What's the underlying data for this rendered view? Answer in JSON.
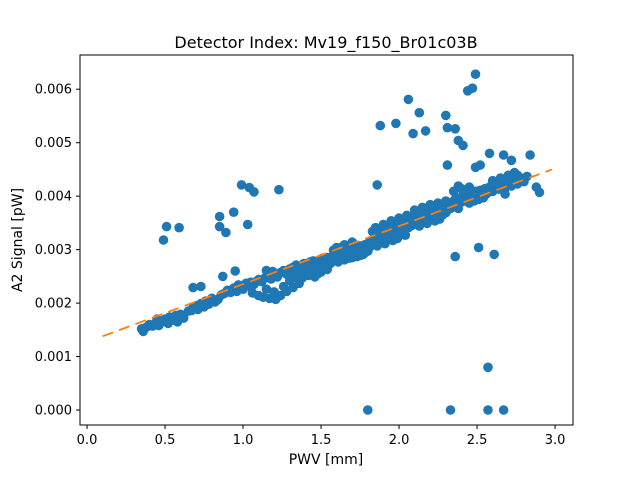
{
  "figure": {
    "title": "Detector Index: Mv19_f150_Br01c03B"
  },
  "chart_data": {
    "type": "scatter",
    "title": "Detector Index: Mv19_f150_Br01c03B",
    "xlabel": "PWV [mm]",
    "ylabel": "A2 Signal [pW]",
    "xlim": [
      -0.045,
      3.115
    ],
    "ylim": [
      -0.00028,
      0.00664
    ],
    "grid": false,
    "legend": "none",
    "x_ticks": [
      0.0,
      0.5,
      1.0,
      1.5,
      2.0,
      2.5,
      3.0
    ],
    "x_tick_labels": [
      "0.0",
      "0.5",
      "1.0",
      "1.5",
      "2.0",
      "2.5",
      "3.0"
    ],
    "y_ticks": [
      0.0,
      0.001,
      0.002,
      0.003,
      0.004,
      0.005,
      0.006
    ],
    "y_tick_labels": [
      "0.000",
      "0.001",
      "0.002",
      "0.003",
      "0.004",
      "0.005",
      "0.006"
    ],
    "marker_color": "#1f77b4",
    "trend_color": "#ff7f0e",
    "trend_line": {
      "style": "dashed",
      "x1": 0.1,
      "y1": 0.00138,
      "x2": 2.98,
      "y2": 0.0045
    },
    "points": [
      [
        0.35,
        0.00152
      ],
      [
        0.36,
        0.00147
      ],
      [
        0.38,
        0.00155
      ],
      [
        0.4,
        0.0016
      ],
      [
        0.42,
        0.00157
      ],
      [
        0.44,
        0.00163
      ],
      [
        0.45,
        0.0017
      ],
      [
        0.46,
        0.00158
      ],
      [
        0.48,
        0.00165
      ],
      [
        0.5,
        0.0017
      ],
      [
        0.52,
        0.00162
      ],
      [
        0.53,
        0.00174
      ],
      [
        0.55,
        0.00168
      ],
      [
        0.57,
        0.00177
      ],
      [
        0.58,
        0.00165
      ],
      [
        0.6,
        0.00179
      ],
      [
        0.62,
        0.00172
      ],
      [
        0.65,
        0.00185
      ],
      [
        0.67,
        0.00186
      ],
      [
        0.68,
        0.00192
      ],
      [
        0.7,
        0.00195
      ],
      [
        0.71,
        0.00188
      ],
      [
        0.73,
        0.00199
      ],
      [
        0.75,
        0.00193
      ],
      [
        0.76,
        0.00204
      ],
      [
        0.78,
        0.00198
      ],
      [
        0.8,
        0.00209
      ],
      [
        0.82,
        0.00202
      ],
      [
        0.84,
        0.00207
      ],
      [
        0.68,
        0.00229
      ],
      [
        0.73,
        0.00231
      ],
      [
        0.87,
        0.0025
      ],
      [
        0.95,
        0.0026
      ],
      [
        0.86,
        0.00215
      ],
      [
        0.88,
        0.00218
      ],
      [
        0.9,
        0.00224
      ],
      [
        0.92,
        0.0022
      ],
      [
        0.94,
        0.00228
      ],
      [
        0.96,
        0.00222
      ],
      [
        0.97,
        0.00234
      ],
      [
        0.99,
        0.0023
      ],
      [
        1.0,
        0.00226
      ],
      [
        1.02,
        0.00237
      ],
      [
        1.04,
        0.00232
      ],
      [
        1.05,
        0.00239
      ],
      [
        1.07,
        0.00235
      ],
      [
        1.09,
        0.00241
      ],
      [
        1.06,
        0.00219
      ],
      [
        1.1,
        0.00214
      ],
      [
        1.13,
        0.00211
      ],
      [
        1.17,
        0.00209
      ],
      [
        1.21,
        0.00207
      ],
      [
        1.24,
        0.00214
      ],
      [
        1.28,
        0.00222
      ],
      [
        1.32,
        0.00229
      ],
      [
        1.36,
        0.00237
      ],
      [
        1.2,
        0.00221
      ],
      [
        1.15,
        0.00226
      ],
      [
        1.26,
        0.00231
      ],
      [
        1.3,
        0.00242
      ],
      [
        1.34,
        0.00247
      ],
      [
        1.38,
        0.00247
      ],
      [
        1.1,
        0.00244
      ],
      [
        1.12,
        0.0024
      ],
      [
        1.14,
        0.00247
      ],
      [
        1.16,
        0.00251
      ],
      [
        1.18,
        0.00245
      ],
      [
        1.2,
        0.00254
      ],
      [
        1.22,
        0.00249
      ],
      [
        1.24,
        0.00257
      ],
      [
        1.26,
        0.00261
      ],
      [
        1.28,
        0.00254
      ],
      [
        1.3,
        0.00264
      ],
      [
        1.15,
        0.00261
      ],
      [
        1.19,
        0.00259
      ],
      [
        1.31,
        0.00259
      ],
      [
        1.32,
        0.00267
      ],
      [
        1.33,
        0.00254
      ],
      [
        1.34,
        0.00271
      ],
      [
        1.35,
        0.00264
      ],
      [
        1.36,
        0.00257
      ],
      [
        1.37,
        0.00269
      ],
      [
        1.38,
        0.00261
      ],
      [
        1.39,
        0.00274
      ],
      [
        1.4,
        0.00267
      ],
      [
        1.41,
        0.00259
      ],
      [
        1.42,
        0.00271
      ],
      [
        1.43,
        0.00277
      ],
      [
        1.44,
        0.00264
      ],
      [
        1.45,
        0.00279
      ],
      [
        1.46,
        0.00269
      ],
      [
        1.47,
        0.00274
      ],
      [
        1.48,
        0.00267
      ],
      [
        1.49,
        0.00281
      ],
      [
        1.5,
        0.00273
      ],
      [
        1.51,
        0.00284
      ],
      [
        1.52,
        0.00277
      ],
      [
        1.53,
        0.00269
      ],
      [
        1.54,
        0.00285
      ],
      [
        1.55,
        0.00279
      ],
      [
        1.42,
        0.00252
      ],
      [
        1.46,
        0.00249
      ],
      [
        1.5,
        0.00258
      ],
      [
        1.54,
        0.00263
      ],
      [
        1.48,
        0.00255
      ],
      [
        1.56,
        0.00274
      ],
      [
        1.57,
        0.00287
      ],
      [
        1.58,
        0.00279
      ],
      [
        1.59,
        0.00291
      ],
      [
        1.6,
        0.00283
      ],
      [
        1.61,
        0.00277
      ],
      [
        1.62,
        0.00294
      ],
      [
        1.63,
        0.00285
      ],
      [
        1.64,
        0.00291
      ],
      [
        1.65,
        0.00281
      ],
      [
        1.66,
        0.00297
      ],
      [
        1.67,
        0.00289
      ],
      [
        1.68,
        0.00301
      ],
      [
        1.69,
        0.00293
      ],
      [
        1.7,
        0.00285
      ],
      [
        1.71,
        0.00299
      ],
      [
        1.72,
        0.00291
      ],
      [
        1.73,
        0.00304
      ],
      [
        1.74,
        0.00295
      ],
      [
        1.75,
        0.00307
      ],
      [
        1.76,
        0.00299
      ],
      [
        1.77,
        0.00291
      ],
      [
        1.78,
        0.00309
      ],
      [
        1.79,
        0.00301
      ],
      [
        1.8,
        0.00311
      ],
      [
        1.58,
        0.00299
      ],
      [
        1.63,
        0.00304
      ],
      [
        1.68,
        0.00284
      ],
      [
        1.73,
        0.00287
      ],
      [
        1.78,
        0.00294
      ],
      [
        1.6,
        0.00304
      ],
      [
        1.65,
        0.00309
      ],
      [
        1.7,
        0.00314
      ],
      [
        1.75,
        0.00289
      ],
      [
        1.8,
        0.00297
      ],
      [
        1.81,
        0.00304
      ],
      [
        1.82,
        0.00317
      ],
      [
        1.83,
        0.00309
      ],
      [
        1.84,
        0.00321
      ],
      [
        1.85,
        0.00313
      ],
      [
        1.86,
        0.00307
      ],
      [
        1.87,
        0.00324
      ],
      [
        1.88,
        0.00315
      ],
      [
        1.89,
        0.00327
      ],
      [
        1.9,
        0.00319
      ],
      [
        1.91,
        0.00311
      ],
      [
        1.92,
        0.00329
      ],
      [
        1.93,
        0.00321
      ],
      [
        1.94,
        0.00334
      ],
      [
        1.95,
        0.00325
      ],
      [
        1.96,
        0.00317
      ],
      [
        1.97,
        0.00337
      ],
      [
        1.98,
        0.00329
      ],
      [
        1.99,
        0.00321
      ],
      [
        2.0,
        0.00339
      ],
      [
        2.01,
        0.00331
      ],
      [
        2.02,
        0.00344
      ],
      [
        2.03,
        0.00335
      ],
      [
        2.04,
        0.00327
      ],
      [
        2.05,
        0.00347
      ],
      [
        1.83,
        0.00334
      ],
      [
        1.88,
        0.00339
      ],
      [
        1.93,
        0.00344
      ],
      [
        1.98,
        0.00349
      ],
      [
        2.03,
        0.00354
      ],
      [
        1.85,
        0.00341
      ],
      [
        1.9,
        0.00347
      ],
      [
        1.95,
        0.00354
      ],
      [
        2.0,
        0.00359
      ],
      [
        2.05,
        0.00364
      ],
      [
        1.86,
        0.00329
      ],
      [
        1.91,
        0.00335
      ],
      [
        1.96,
        0.00343
      ],
      [
        2.01,
        0.00351
      ],
      [
        2.06,
        0.00341
      ],
      [
        2.07,
        0.00354
      ],
      [
        2.08,
        0.00345
      ],
      [
        2.09,
        0.00359
      ],
      [
        2.1,
        0.00349
      ],
      [
        2.11,
        0.00361
      ],
      [
        2.12,
        0.00353
      ],
      [
        2.13,
        0.00344
      ],
      [
        2.14,
        0.00364
      ],
      [
        2.15,
        0.00355
      ],
      [
        2.16,
        0.00367
      ],
      [
        2.17,
        0.00357
      ],
      [
        2.18,
        0.00349
      ],
      [
        2.19,
        0.00369
      ],
      [
        2.2,
        0.00359
      ],
      [
        2.21,
        0.00371
      ],
      [
        2.22,
        0.00361
      ],
      [
        2.23,
        0.00354
      ],
      [
        2.24,
        0.00373
      ],
      [
        2.25,
        0.00364
      ],
      [
        2.26,
        0.00357
      ],
      [
        2.27,
        0.00375
      ],
      [
        2.28,
        0.00365
      ],
      [
        2.29,
        0.00377
      ],
      [
        2.3,
        0.00369
      ],
      [
        2.1,
        0.00374
      ],
      [
        2.15,
        0.00379
      ],
      [
        2.2,
        0.00384
      ],
      [
        2.25,
        0.00387
      ],
      [
        2.3,
        0.00391
      ],
      [
        2.31,
        0.00374
      ],
      [
        2.32,
        0.00384
      ],
      [
        2.33,
        0.00377
      ],
      [
        2.34,
        0.00389
      ],
      [
        2.35,
        0.00381
      ],
      [
        2.36,
        0.00394
      ],
      [
        2.37,
        0.00385
      ],
      [
        2.38,
        0.00377
      ],
      [
        2.39,
        0.00397
      ],
      [
        2.4,
        0.00389
      ],
      [
        2.41,
        0.00399
      ],
      [
        2.42,
        0.00391
      ],
      [
        2.43,
        0.00404
      ],
      [
        2.44,
        0.00395
      ],
      [
        2.45,
        0.00387
      ],
      [
        2.46,
        0.00407
      ],
      [
        2.47,
        0.00399
      ],
      [
        2.48,
        0.00391
      ],
      [
        2.49,
        0.00409
      ],
      [
        2.5,
        0.00401
      ],
      [
        2.51,
        0.00394
      ],
      [
        2.52,
        0.00411
      ],
      [
        2.53,
        0.00404
      ],
      [
        2.54,
        0.00397
      ],
      [
        2.55,
        0.00414
      ],
      [
        2.35,
        0.00409
      ],
      [
        2.4,
        0.00414
      ],
      [
        2.45,
        0.00417
      ],
      [
        2.38,
        0.00419
      ],
      [
        2.56,
        0.00404
      ],
      [
        2.58,
        0.00417
      ],
      [
        2.6,
        0.00409
      ],
      [
        2.62,
        0.00421
      ],
      [
        2.64,
        0.00413
      ],
      [
        2.66,
        0.00424
      ],
      [
        2.68,
        0.00415
      ],
      [
        2.7,
        0.00427
      ],
      [
        2.72,
        0.00419
      ],
      [
        2.74,
        0.00431
      ],
      [
        2.76,
        0.00423
      ],
      [
        2.78,
        0.00434
      ],
      [
        2.8,
        0.00427
      ],
      [
        2.82,
        0.00437
      ],
      [
        2.76,
        0.00439
      ],
      [
        2.7,
        0.00439
      ],
      [
        2.65,
        0.00434
      ],
      [
        2.6,
        0.00429
      ],
      [
        2.74,
        0.00444
      ],
      [
        2.68,
        0.00404
      ],
      [
        2.88,
        0.00417
      ],
      [
        2.9,
        0.00407
      ],
      [
        2.49,
        0.00628
      ],
      [
        2.44,
        0.00597
      ],
      [
        2.47,
        0.00602
      ],
      [
        2.06,
        0.00581
      ],
      [
        2.13,
        0.00556
      ],
      [
        2.3,
        0.00551
      ],
      [
        1.88,
        0.00532
      ],
      [
        1.98,
        0.00536
      ],
      [
        2.31,
        0.00528
      ],
      [
        2.36,
        0.00526
      ],
      [
        2.17,
        0.00522
      ],
      [
        2.09,
        0.00517
      ],
      [
        2.38,
        0.00504
      ],
      [
        2.41,
        0.00495
      ],
      [
        2.58,
        0.0048
      ],
      [
        2.67,
        0.00477
      ],
      [
        2.72,
        0.00467
      ],
      [
        2.84,
        0.00477
      ],
      [
        2.31,
        0.00458
      ],
      [
        2.49,
        0.00454
      ],
      [
        2.52,
        0.00458
      ],
      [
        0.51,
        0.00343
      ],
      [
        0.59,
        0.00341
      ],
      [
        0.49,
        0.00318
      ],
      [
        0.85,
        0.00362
      ],
      [
        0.94,
        0.0037
      ],
      [
        0.85,
        0.00343
      ],
      [
        0.89,
        0.00332
      ],
      [
        1.03,
        0.00347
      ],
      [
        0.99,
        0.00421
      ],
      [
        1.04,
        0.00416
      ],
      [
        1.07,
        0.00408
      ],
      [
        1.23,
        0.00412
      ],
      [
        1.86,
        0.00421
      ],
      [
        1.8,
        0.0
      ],
      [
        2.33,
        0.0
      ],
      [
        2.57,
        0.0
      ],
      [
        2.67,
        0.0
      ],
      [
        2.57,
        0.0008
      ],
      [
        2.36,
        0.00287
      ],
      [
        2.51,
        0.00304
      ],
      [
        2.61,
        0.00291
      ]
    ]
  }
}
